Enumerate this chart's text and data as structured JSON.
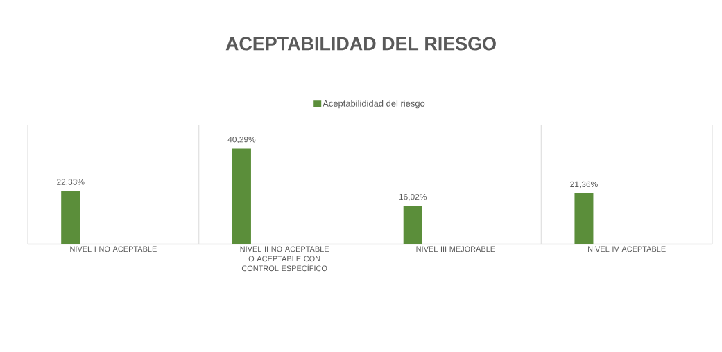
{
  "chart_data": {
    "type": "bar",
    "title": "ACEPTABILIDAD DEL RIESGO",
    "categories": [
      "NIVEL I NO ACEPTABLE",
      "NIVEL II NO ACEPTABLE O ACEPTABLE CON CONTROL ESPECÍFICO",
      "NIVEL III MEJORABLE",
      "NIVEL IV ACEPTABLE"
    ],
    "series": [
      {
        "name": "Aceptabilididad del riesgo",
        "color": "#5b8e3a",
        "values": [
          22.33,
          40.29,
          16.02,
          21.36
        ],
        "value_labels": [
          "22,33%",
          "40,29%",
          "16,02%",
          "21,36%"
        ]
      }
    ],
    "grid": "x",
    "legend": "top"
  }
}
